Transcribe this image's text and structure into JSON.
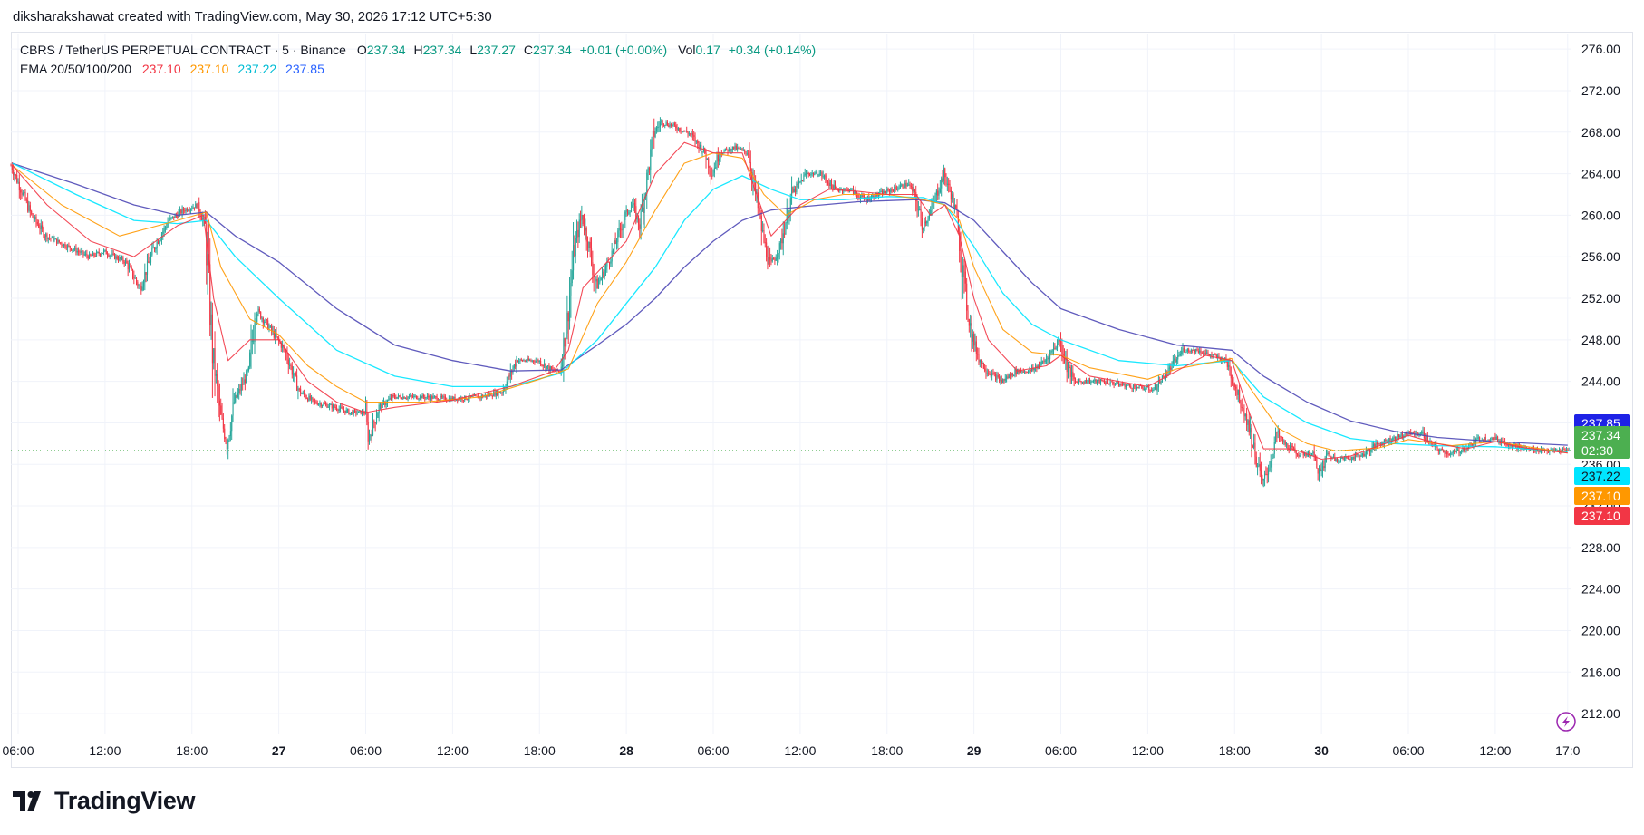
{
  "attribution": "diksharakshawat created with TradingView.com, May 30, 2026 17:12 UTC+5:30",
  "brand": {
    "name": "TradingView",
    "logo_icon": "tradingview-logo-icon"
  },
  "legend": {
    "symbol": "CBRS / TetherUS PERPETUAL CONTRACT · 5 · Binance",
    "o_key": "O",
    "open": "237.34",
    "h_key": "H",
    "high": "237.34",
    "l_key": "L",
    "low": "237.27",
    "c_key": "C",
    "close": "237.34",
    "change": "+0.01 (+0.00%)",
    "vol_key": "Vol",
    "volume": "0.17",
    "vol_change": "+0.34 (+0.14%)",
    "ema_label": "EMA 20/50/100/200",
    "ema20": "237.10",
    "ema50": "237.10",
    "ema100": "237.22",
    "ema200": "237.85"
  },
  "price_labels": {
    "ema200": "237.85",
    "last": "237.34",
    "countdown": "02:30",
    "ema100": "237.22",
    "ema50": "237.10",
    "ema20": "237.10"
  },
  "colors": {
    "up": "#089981",
    "down": "#f23645",
    "candle_up": "#26a69a",
    "ema20": "#f23645",
    "ema50": "#ff9800",
    "ema100": "#00e5ff",
    "ema200": "#2962ff",
    "ema200_line": "#4f49b6",
    "last_price": "#4caf50",
    "grid": "#f0f3fa"
  },
  "chart_data": {
    "type": "candlestick",
    "symbol": "CBRS / TetherUS PERPETUAL CONTRACT",
    "interval": "5",
    "exchange": "Binance",
    "y_axis": {
      "ticks": [
        "276.00",
        "272.00",
        "268.00",
        "264.00",
        "260.00",
        "256.00",
        "252.00",
        "248.00",
        "244.00",
        "240.00",
        "236.00",
        "232.00",
        "228.00",
        "224.00",
        "220.00",
        "216.00",
        "212.00"
      ],
      "tick_values": [
        276,
        272,
        268,
        264,
        260,
        256,
        252,
        248,
        244,
        240,
        236,
        232,
        228,
        224,
        220,
        216,
        212
      ]
    },
    "x_axis": {
      "ticks": [
        "06:00",
        "12:00",
        "18:00",
        "27",
        "06:00",
        "12:00",
        "18:00",
        "28",
        "06:00",
        "12:00",
        "18:00",
        "29",
        "06:00",
        "12:00",
        "18:00",
        "30",
        "06:00",
        "12:00",
        "17:0"
      ],
      "bold": [
        false,
        false,
        false,
        true,
        false,
        false,
        false,
        true,
        false,
        false,
        false,
        true,
        false,
        false,
        false,
        true,
        false,
        false,
        false
      ],
      "tick_hours": [
        6,
        12,
        18,
        24,
        30,
        36,
        42,
        48,
        54,
        60,
        66,
        72,
        78,
        84,
        90,
        96,
        102,
        108,
        113
      ]
    },
    "x_range_hours": [
      5.5,
      113.2
    ],
    "y_range": [
      210,
      277.5
    ],
    "price_path": [
      [
        5.6,
        264.8
      ],
      [
        7,
        260
      ],
      [
        8,
        258
      ],
      [
        9.5,
        257
      ],
      [
        11,
        256
      ],
      [
        12,
        256.5
      ],
      [
        13.5,
        255.5
      ],
      [
        14.5,
        253
      ],
      [
        15.5,
        257
      ],
      [
        16.5,
        259.5
      ],
      [
        17.5,
        260.5
      ],
      [
        18.5,
        261
      ],
      [
        19,
        259
      ],
      [
        19.5,
        247
      ],
      [
        20,
        241
      ],
      [
        20.5,
        238
      ],
      [
        21,
        242
      ],
      [
        22,
        245
      ],
      [
        22.5,
        251
      ],
      [
        23.5,
        249
      ],
      [
        24.5,
        247
      ],
      [
        25.5,
        243
      ],
      [
        26.5,
        242
      ],
      [
        28,
        241.5
      ],
      [
        29,
        241
      ],
      [
        30,
        241
      ],
      [
        30.3,
        238.5
      ],
      [
        31,
        241.5
      ],
      [
        32,
        242.5
      ],
      [
        34,
        242.5
      ],
      [
        36,
        242.3
      ],
      [
        38,
        242.5
      ],
      [
        39.5,
        243
      ],
      [
        40.5,
        246
      ],
      [
        42,
        246
      ],
      [
        43,
        245
      ],
      [
        43.5,
        245
      ],
      [
        44,
        250
      ],
      [
        44.5,
        257
      ],
      [
        45,
        260
      ],
      [
        45.5,
        257
      ],
      [
        46,
        253
      ],
      [
        47,
        256
      ],
      [
        48,
        260
      ],
      [
        48.5,
        261
      ],
      [
        49,
        259
      ],
      [
        50,
        268
      ],
      [
        50.5,
        269
      ],
      [
        51.5,
        268.5
      ],
      [
        52.5,
        267.8
      ],
      [
        53.5,
        266
      ],
      [
        54,
        264
      ],
      [
        54.5,
        266
      ],
      [
        55.5,
        266.5
      ],
      [
        56.5,
        266
      ],
      [
        57,
        262
      ],
      [
        57.5,
        258
      ],
      [
        58,
        255
      ],
      [
        58.7,
        257
      ],
      [
        59.5,
        262
      ],
      [
        60.5,
        264
      ],
      [
        61.5,
        264
      ],
      [
        62.5,
        262.5
      ],
      [
        63.5,
        262.5
      ],
      [
        64.5,
        261.5
      ],
      [
        65.5,
        262
      ],
      [
        66.5,
        262.5
      ],
      [
        67.5,
        263
      ],
      [
        68,
        262
      ],
      [
        68.5,
        259
      ],
      [
        69,
        260
      ],
      [
        69.5,
        262
      ],
      [
        70,
        264
      ],
      [
        70.5,
        262
      ],
      [
        71,
        259
      ],
      [
        71.5,
        252
      ],
      [
        72,
        248
      ],
      [
        72.5,
        246
      ],
      [
        73,
        245
      ],
      [
        74,
        244
      ],
      [
        75,
        245
      ],
      [
        76,
        245
      ],
      [
        77,
        246
      ],
      [
        78,
        248
      ],
      [
        78.5,
        245.5
      ],
      [
        79,
        244
      ],
      [
        80,
        244
      ],
      [
        81,
        244
      ],
      [
        83,
        243.5
      ],
      [
        84.5,
        243.2
      ],
      [
        85.5,
        245
      ],
      [
        86.5,
        247
      ],
      [
        87.5,
        247
      ],
      [
        88.5,
        246.5
      ],
      [
        89.5,
        246
      ],
      [
        90,
        244
      ],
      [
        90.5,
        242
      ],
      [
        91,
        240
      ],
      [
        91.5,
        237
      ],
      [
        92,
        234
      ],
      [
        92.5,
        236
      ],
      [
        93,
        239
      ],
      [
        93.5,
        238
      ],
      [
        94.5,
        237
      ],
      [
        95.5,
        237
      ],
      [
        96,
        235
      ],
      [
        96.5,
        237
      ],
      [
        97,
        236.5
      ],
      [
        98,
        236.6
      ],
      [
        99,
        237
      ],
      [
        100,
        238
      ],
      [
        101,
        238.5
      ],
      [
        102,
        239
      ],
      [
        103,
        239
      ],
      [
        104,
        237.5
      ],
      [
        105,
        237
      ],
      [
        106,
        237.5
      ],
      [
        107,
        238.5
      ],
      [
        108,
        238.5
      ],
      [
        109,
        238
      ],
      [
        110,
        237.5
      ],
      [
        111,
        237.4
      ],
      [
        112,
        237.3
      ],
      [
        113,
        237.34
      ]
    ],
    "ema20_path": [
      [
        5.6,
        264.8
      ],
      [
        8,
        261
      ],
      [
        11,
        257.5
      ],
      [
        14,
        256
      ],
      [
        17,
        259
      ],
      [
        18.8,
        260
      ],
      [
        19.5,
        252
      ],
      [
        20.5,
        246
      ],
      [
        22,
        248
      ],
      [
        24,
        248
      ],
      [
        26,
        244
      ],
      [
        28,
        242
      ],
      [
        30,
        241
      ],
      [
        32,
        241.5
      ],
      [
        36,
        242.2
      ],
      [
        40,
        243.5
      ],
      [
        43,
        245
      ],
      [
        44,
        247
      ],
      [
        45,
        253
      ],
      [
        46,
        254.5
      ],
      [
        48,
        257.5
      ],
      [
        50,
        264
      ],
      [
        52,
        267
      ],
      [
        54,
        266
      ],
      [
        56,
        266
      ],
      [
        57,
        262
      ],
      [
        58,
        258
      ],
      [
        60,
        261
      ],
      [
        62,
        262.5
      ],
      [
        64,
        262.3
      ],
      [
        66,
        262
      ],
      [
        68,
        262
      ],
      [
        69,
        260
      ],
      [
        70,
        261
      ],
      [
        71,
        258
      ],
      [
        72,
        252
      ],
      [
        73,
        248
      ],
      [
        75,
        245
      ],
      [
        77,
        245.5
      ],
      [
        78,
        246.5
      ],
      [
        80,
        244.5
      ],
      [
        84,
        243.5
      ],
      [
        86,
        245
      ],
      [
        88,
        246.5
      ],
      [
        89.8,
        246
      ],
      [
        91,
        241
      ],
      [
        92,
        237.5
      ],
      [
        94,
        237.5
      ],
      [
        96,
        236.5
      ],
      [
        98,
        236.8
      ],
      [
        100,
        237.8
      ],
      [
        102,
        238.8
      ],
      [
        104,
        238
      ],
      [
        106,
        237.5
      ],
      [
        108,
        238.2
      ],
      [
        110,
        237.6
      ],
      [
        113,
        237.1
      ]
    ],
    "ema50_path": [
      [
        5.6,
        264.8
      ],
      [
        9,
        261
      ],
      [
        13,
        258
      ],
      [
        17,
        259.5
      ],
      [
        19,
        260.3
      ],
      [
        20,
        255
      ],
      [
        22,
        250
      ],
      [
        24,
        248.5
      ],
      [
        26,
        245.5
      ],
      [
        28,
        243.5
      ],
      [
        30,
        242
      ],
      [
        34,
        242
      ],
      [
        38,
        242.5
      ],
      [
        42,
        244.2
      ],
      [
        44,
        245.2
      ],
      [
        46,
        251.5
      ],
      [
        48,
        255.5
      ],
      [
        50,
        260.5
      ],
      [
        52,
        265
      ],
      [
        54,
        266
      ],
      [
        56,
        265.5
      ],
      [
        57.5,
        262
      ],
      [
        59,
        260
      ],
      [
        61,
        261.5
      ],
      [
        63,
        262
      ],
      [
        66,
        262
      ],
      [
        68.5,
        261.5
      ],
      [
        70,
        261
      ],
      [
        71,
        259.5
      ],
      [
        72,
        255
      ],
      [
        74,
        249
      ],
      [
        76,
        246.8
      ],
      [
        78,
        246.5
      ],
      [
        80,
        245.3
      ],
      [
        84,
        244.2
      ],
      [
        86,
        245.2
      ],
      [
        89.8,
        246.2
      ],
      [
        91,
        243.5
      ],
      [
        93,
        239.5
      ],
      [
        95,
        238
      ],
      [
        97,
        237.3
      ],
      [
        100,
        237.6
      ],
      [
        102,
        238.4
      ],
      [
        105,
        237.8
      ],
      [
        108,
        238.2
      ],
      [
        113,
        237.1
      ]
    ],
    "ema100_path": [
      [
        5.6,
        265
      ],
      [
        10,
        262
      ],
      [
        14,
        259.5
      ],
      [
        17,
        259.2
      ],
      [
        19,
        259.5
      ],
      [
        21,
        256
      ],
      [
        24,
        252
      ],
      [
        28,
        247
      ],
      [
        32,
        244.5
      ],
      [
        36,
        243.5
      ],
      [
        40,
        243.5
      ],
      [
        43.5,
        244.8
      ],
      [
        46,
        248
      ],
      [
        48,
        251.5
      ],
      [
        50,
        255
      ],
      [
        52,
        259.5
      ],
      [
        54,
        262.5
      ],
      [
        56,
        263.8
      ],
      [
        58,
        262.5
      ],
      [
        60,
        261.5
      ],
      [
        63,
        261.5
      ],
      [
        66,
        261.8
      ],
      [
        68.5,
        261.7
      ],
      [
        70,
        261
      ],
      [
        72,
        257
      ],
      [
        74,
        252.5
      ],
      [
        76,
        249.5
      ],
      [
        78,
        248
      ],
      [
        82,
        246
      ],
      [
        86,
        245.5
      ],
      [
        89.8,
        246
      ],
      [
        92,
        242.5
      ],
      [
        95,
        240
      ],
      [
        98,
        238.5
      ],
      [
        101,
        238
      ],
      [
        104,
        237.8
      ],
      [
        108,
        237.7
      ],
      [
        113,
        237.22
      ]
    ],
    "ema200_path": [
      [
        5.6,
        265
      ],
      [
        10,
        263
      ],
      [
        14,
        261
      ],
      [
        17,
        260
      ],
      [
        19,
        260.3
      ],
      [
        21,
        258
      ],
      [
        24,
        255.5
      ],
      [
        28,
        251
      ],
      [
        32,
        247.5
      ],
      [
        36,
        246
      ],
      [
        40,
        245
      ],
      [
        43.5,
        245.1
      ],
      [
        46,
        247.5
      ],
      [
        48,
        249.5
      ],
      [
        50,
        252
      ],
      [
        52,
        255
      ],
      [
        54,
        257.5
      ],
      [
        56,
        259.5
      ],
      [
        58,
        260.5
      ],
      [
        60,
        260.8
      ],
      [
        64,
        261.3
      ],
      [
        68,
        261.5
      ],
      [
        70,
        261.2
      ],
      [
        72,
        259.5
      ],
      [
        74,
        256.5
      ],
      [
        76,
        253.5
      ],
      [
        78,
        251
      ],
      [
        82,
        249
      ],
      [
        86,
        247.5
      ],
      [
        89.8,
        247
      ],
      [
        92,
        244.5
      ],
      [
        95,
        242
      ],
      [
        98,
        240.2
      ],
      [
        101,
        239.2
      ],
      [
        104,
        238.6
      ],
      [
        108,
        238.2
      ],
      [
        113,
        237.85
      ]
    ],
    "last_price": 237.34,
    "ema_values": {
      "ema20": 237.1,
      "ema50": 237.1,
      "ema100": 237.22,
      "ema200": 237.85
    }
  }
}
